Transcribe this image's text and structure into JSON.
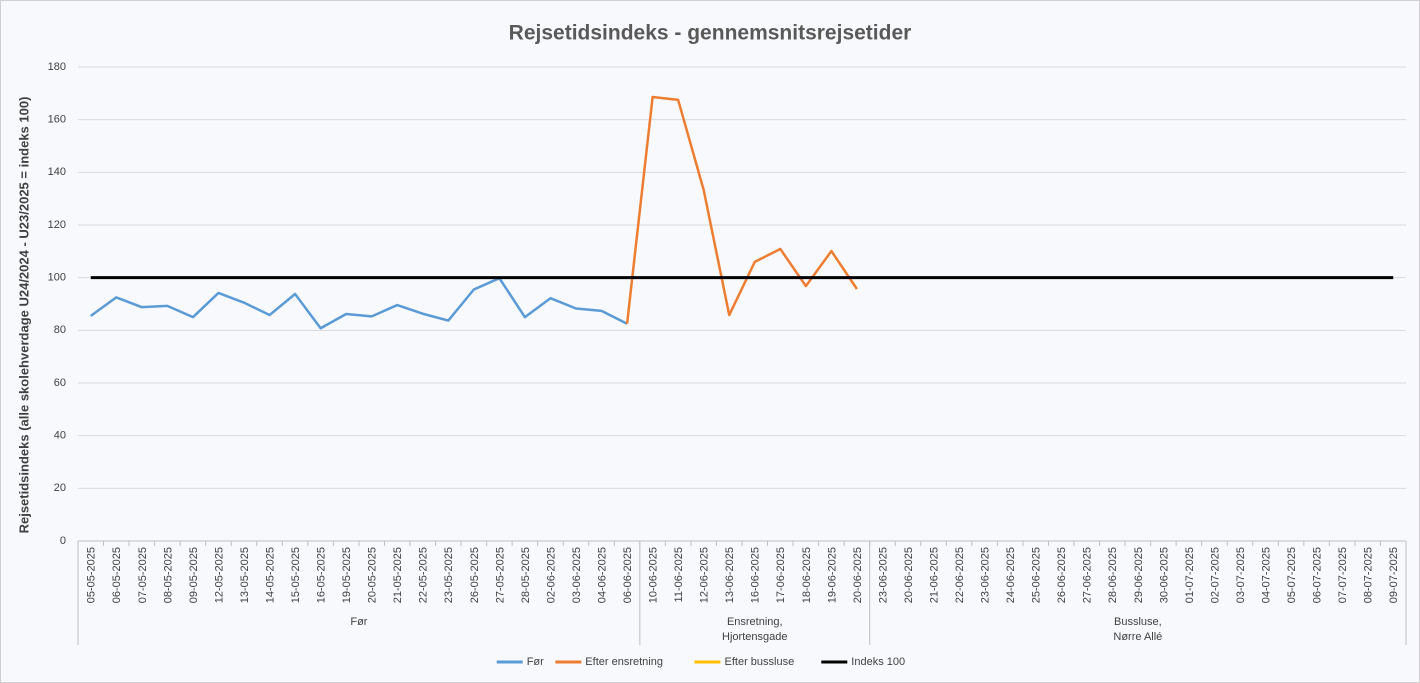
{
  "chart_data": {
    "type": "line",
    "title": "Rejsetidsindeks - gennemsnitsrejsetider",
    "y_label": "Rejsetidsindeks (alle skolehverdage U24/2024 - U23/2025 = indeks 100)",
    "groups": [
      {
        "label": "Før",
        "categories": [
          "05-05-2025",
          "06-05-2025",
          "07-05-2025",
          "08-05-2025",
          "09-05-2025",
          "12-05-2025",
          "13-05-2025",
          "14-05-2025",
          "15-05-2025",
          "16-05-2025",
          "19-05-2025",
          "20-05-2025",
          "21-05-2025",
          "22-05-2025",
          "23-05-2025",
          "26-05-2025",
          "27-05-2025",
          "28-05-2025",
          "02-06-2025",
          "03-06-2025",
          "04-06-2025",
          "06-06-2025"
        ]
      },
      {
        "label": "Ensretning,\nHjortensgade",
        "categories": [
          "10-06-2025",
          "11-06-2025",
          "12-06-2025",
          "13-06-2025",
          "16-06-2025",
          "17-06-2025",
          "18-06-2025",
          "19-06-2025",
          "20-06-2025"
        ]
      },
      {
        "label": "Bussluse,\nNørre Allé",
        "categories": [
          "23-06-2025",
          "20-06-2025",
          "21-06-2025",
          "22-06-2025",
          "23-06-2025",
          "24-06-2025",
          "25-06-2025",
          "26-06-2025",
          "27-06-2025",
          "28-06-2025",
          "29-06-2025",
          "30-06-2025",
          "01-07-2025",
          "02-07-2025",
          "03-07-2025",
          "04-07-2025",
          "05-07-2025",
          "06-07-2025",
          "07-07-2025",
          "08-07-2025",
          "09-07-2025"
        ]
      }
    ],
    "series": [
      {
        "name": "Før",
        "color": "#5b9bd5",
        "values": [
          85.5,
          92.5,
          88.8,
          89.3,
          85,
          94.2,
          90.5,
          85.8,
          93.8,
          80.8,
          86.2,
          85.3,
          89.6,
          86.3,
          83.7,
          95.5,
          99.8,
          85,
          92.2,
          88.3,
          87.4,
          82.5,
          null,
          null,
          null,
          null,
          null,
          null,
          null,
          null,
          null,
          null,
          null,
          null,
          null,
          null,
          null,
          null,
          null,
          null,
          null,
          null,
          null,
          null,
          null,
          null,
          null,
          null,
          null,
          null,
          null,
          null
        ]
      },
      {
        "name": "Efter ensretning",
        "color": "#ed7d31",
        "values": [
          null,
          null,
          null,
          null,
          null,
          null,
          null,
          null,
          null,
          null,
          null,
          null,
          null,
          null,
          null,
          null,
          null,
          null,
          null,
          null,
          null,
          82.5,
          168.6,
          167.5,
          133.3,
          85.8,
          106,
          110.9,
          96.8,
          110.1,
          95.7,
          null,
          null,
          null,
          null,
          null,
          null,
          null,
          null,
          null,
          null,
          null,
          null,
          null,
          null,
          null,
          null,
          null,
          null,
          null,
          null,
          null
        ]
      },
      {
        "name": "Efter bussluse",
        "color": "#ffc000",
        "values": [
          null,
          null,
          null,
          null,
          null,
          null,
          null,
          null,
          null,
          null,
          null,
          null,
          null,
          null,
          null,
          null,
          null,
          null,
          null,
          null,
          null,
          null,
          null,
          null,
          null,
          null,
          null,
          null,
          null,
          null,
          null,
          null,
          null,
          null,
          null,
          null,
          null,
          null,
          null,
          null,
          null,
          null,
          null,
          null,
          null,
          null,
          null,
          null,
          null,
          null,
          null,
          null
        ]
      },
      {
        "name": "Indeks 100",
        "color": "#000000",
        "values": [
          100,
          100,
          100,
          100,
          100,
          100,
          100,
          100,
          100,
          100,
          100,
          100,
          100,
          100,
          100,
          100,
          100,
          100,
          100,
          100,
          100,
          100,
          100,
          100,
          100,
          100,
          100,
          100,
          100,
          100,
          100,
          100,
          100,
          100,
          100,
          100,
          100,
          100,
          100,
          100,
          100,
          100,
          100,
          100,
          100,
          100,
          100,
          100,
          100,
          100,
          100,
          100
        ]
      }
    ],
    "ylim": [
      0,
      180
    ],
    "yticks": [
      0,
      20,
      40,
      60,
      80,
      100,
      120,
      140,
      160,
      180
    ],
    "grid": true,
    "legend": "bottom"
  }
}
